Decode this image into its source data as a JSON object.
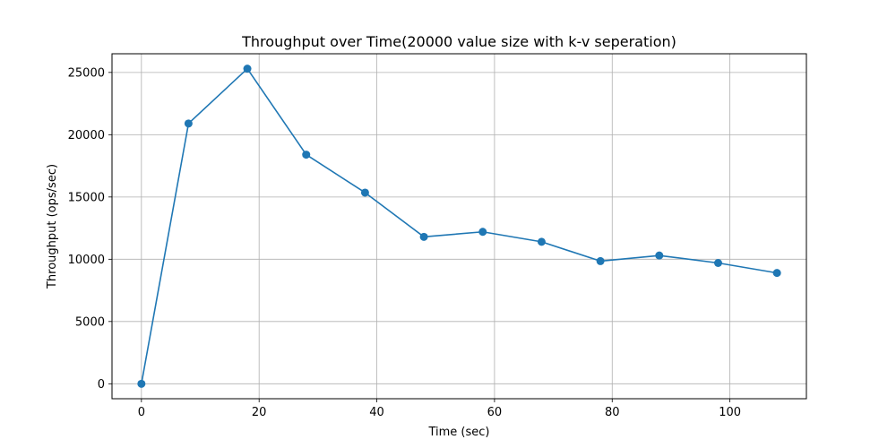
{
  "chart_data": {
    "type": "line",
    "title": "Throughput over Time(20000 value size with k-v seperation)",
    "xlabel": "Time (sec)",
    "ylabel": "Throughput (ops/sec)",
    "xlim": [
      -5,
      113
    ],
    "ylim": [
      -1200,
      26500
    ],
    "xticks": [
      0,
      20,
      40,
      60,
      80,
      100
    ],
    "yticks": [
      0,
      5000,
      10000,
      15000,
      20000,
      25000
    ],
    "grid": true,
    "legend": "none",
    "series": [
      {
        "color": "#1f77b4",
        "marker": "circle",
        "x": [
          0,
          8,
          18,
          28,
          38,
          48,
          58,
          68,
          78,
          88,
          98,
          108
        ],
        "y": [
          0,
          20900,
          25300,
          18400,
          15350,
          11800,
          12200,
          11400,
          9850,
          10300,
          9700,
          8900
        ]
      }
    ]
  }
}
